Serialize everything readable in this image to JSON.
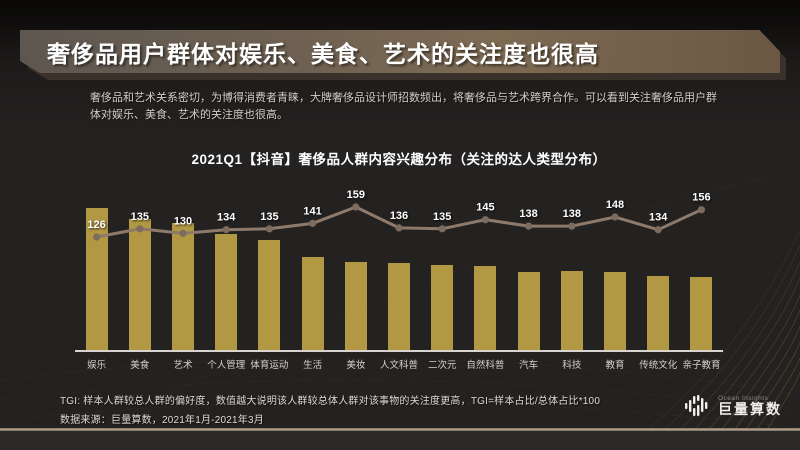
{
  "slide": {
    "title": "奢侈品用户群体对娱乐、美食、艺术的关注度也很高",
    "subtitle": "奢侈品和艺术关系密切，为博得消费者青睐，大牌奢侈品设计师招数频出，将奢侈品与艺术跨界合作。可以看到关注奢侈品用户群体对娱乐、美食、艺术的关注度也很高。",
    "footnote_tgi": "TGI: 样本人群较总人群的偏好度，数值越大说明该人群较总体人群对该事物的关注度更高，TGI=样本占比/总体占比*100",
    "footnote_source": "数据来源：巨量算数，2021年1月-2021年3月",
    "logo": {
      "brand_en": "Ocean Insights",
      "brand_cn": "巨量算数"
    },
    "colors": {
      "background": "#242220",
      "banner_gradient_left": "#5e5750",
      "banner_gradient_right": "#6b5844",
      "bar": "#b29843",
      "line": "#8e7a6b",
      "marker": "#7d6b5e",
      "axis": "#d9d4cf",
      "divider": "#b2a18c",
      "label_text": "#ffffff"
    }
  },
  "chart_data": {
    "type": "bar",
    "subtype": "bar-line-combo",
    "title": "2021Q1【抖音】奢侈品人群内容兴趣分布（关注的达人类型分布）",
    "categories": [
      "娱乐",
      "美食",
      "艺术",
      "个人管理",
      "体育运动",
      "生活",
      "美妆",
      "人文科普",
      "二次元",
      "自然科普",
      "汽车",
      "科技",
      "教育",
      "传统文化",
      "亲子教育"
    ],
    "series": [
      {
        "name": "关注占比（柱形，图中未标注数值，按柱高估算的相对值%）",
        "type": "bar",
        "values": [
          14.2,
          13.1,
          12.7,
          11.6,
          11.0,
          9.3,
          8.8,
          8.7,
          8.5,
          8.4,
          7.8,
          7.9,
          7.8,
          7.4,
          7.3
        ]
      },
      {
        "name": "TGI（折线，带数据标签）",
        "type": "line",
        "values": [
          126,
          135,
          130,
          134,
          135,
          141,
          159,
          136,
          135,
          145,
          138,
          138,
          148,
          134,
          156
        ]
      }
    ],
    "legend": "none",
    "grid": false,
    "x_axis_visible": true,
    "y_axis_visible": false
  }
}
